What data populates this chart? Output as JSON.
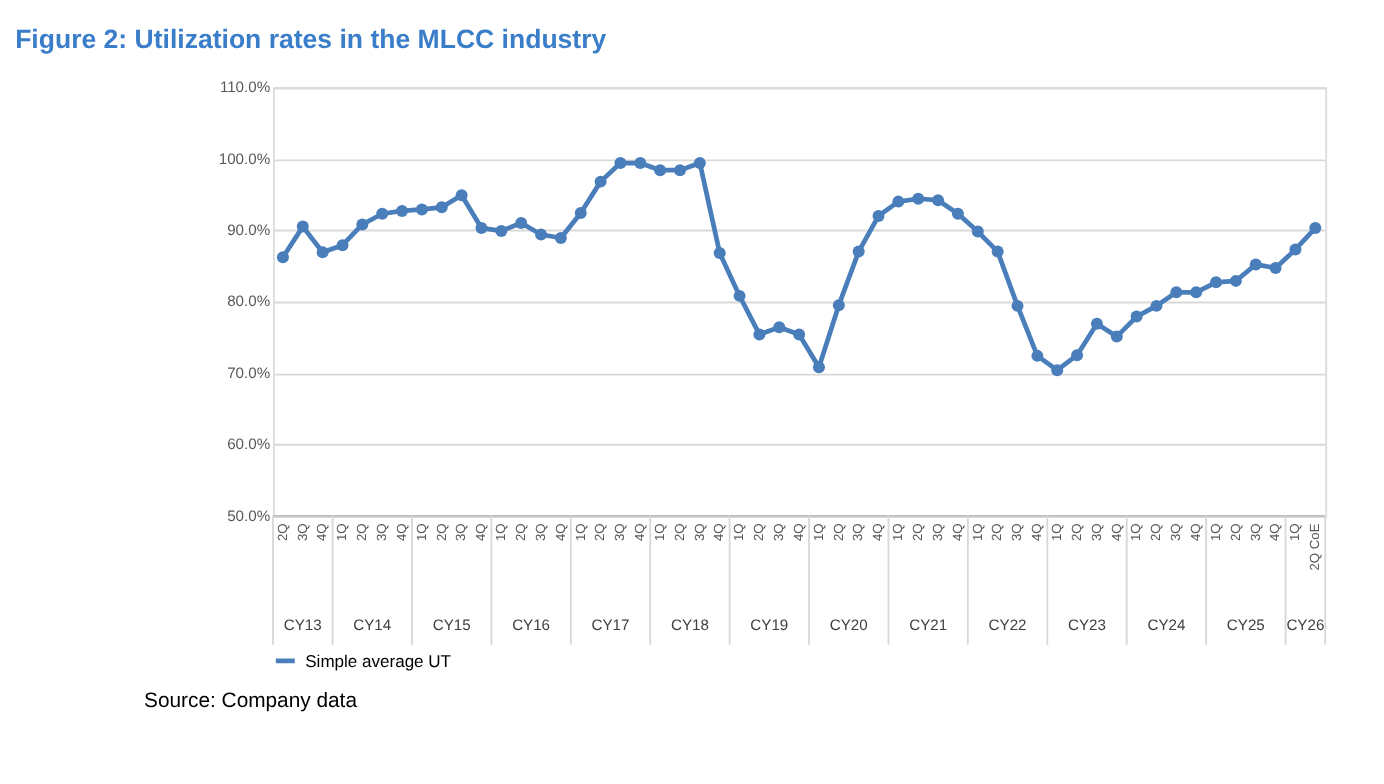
{
  "chart_data": {
    "type": "line",
    "title": "Figure 2: Utilization rates in the MLCC industry",
    "categories": [
      "2Q",
      "3Q",
      "4Q",
      "1Q",
      "2Q",
      "3Q",
      "4Q",
      "1Q",
      "2Q",
      "3Q",
      "4Q",
      "1Q",
      "2Q",
      "3Q",
      "4Q",
      "1Q",
      "2Q",
      "3Q",
      "4Q",
      "1Q",
      "2Q",
      "3Q",
      "4Q",
      "1Q",
      "2Q",
      "3Q",
      "4Q",
      "1Q",
      "2Q",
      "3Q",
      "4Q",
      "1Q",
      "2Q",
      "3Q",
      "4Q",
      "1Q",
      "2Q",
      "3Q",
      "4Q",
      "1Q",
      "2Q",
      "3Q",
      "4Q",
      "1Q",
      "2Q",
      "3Q",
      "4Q",
      "1Q",
      "2Q",
      "3Q",
      "4Q",
      "1Q",
      "2Q CoE"
    ],
    "annotations": [
      "CY13",
      "CY14",
      "CY15",
      "CY16",
      "CY17",
      "CY18",
      "CY19",
      "CY20",
      "CY21",
      "CY22",
      "CY23",
      "CY24",
      "CY25",
      "CY26",
      "Source: Company data"
    ],
    "series": [
      {
        "name": "Simple average UT",
        "color": "#4a7ebb",
        "values": [
          86.2,
          90.5,
          86.9,
          87.9,
          90.8,
          92.3,
          92.7,
          92.9,
          93.2,
          94.9,
          90.3,
          89.9,
          91.0,
          89.4,
          88.9,
          92.4,
          96.8,
          99.4,
          99.4,
          98.4,
          98.4,
          99.4,
          86.8,
          80.8,
          75.4,
          76.4,
          75.4,
          70.8,
          79.5,
          87.0,
          92.0,
          94.0,
          94.4,
          94.2,
          92.3,
          89.8,
          87.0,
          79.4,
          72.4,
          70.4,
          72.5,
          76.9,
          75.1,
          77.9,
          79.4,
          81.3,
          81.3,
          82.7,
          82.9,
          85.2,
          84.7,
          87.3,
          90.3
        ]
      }
    ],
    "ylim": [
      50,
      110
    ],
    "yticks": [
      {
        "value": 50,
        "label": "50.0%"
      },
      {
        "value": 60,
        "label": "60.0%"
      },
      {
        "value": 70,
        "label": "70.0%"
      },
      {
        "value": 80,
        "label": "80.0%"
      },
      {
        "value": 90,
        "label": "90.0%"
      },
      {
        "value": 100,
        "label": "100.0%"
      },
      {
        "value": 110,
        "label": "110.0%"
      }
    ],
    "grid": "y",
    "legend": "bottom",
    "marker": "circle",
    "line_style": "solid"
  }
}
